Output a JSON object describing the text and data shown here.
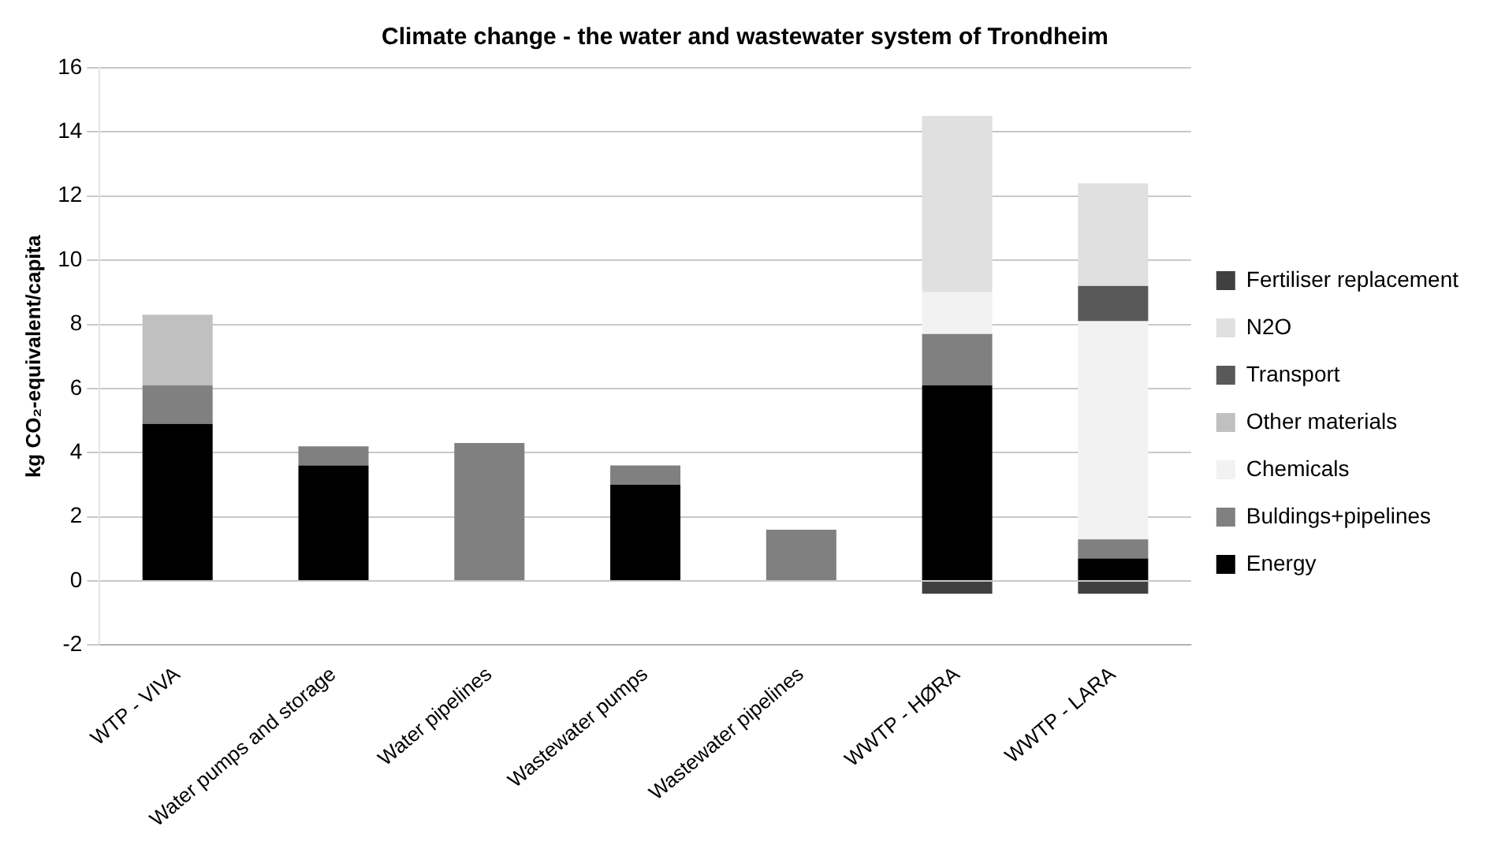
{
  "chart_data": {
    "type": "bar",
    "title": "Climate change - the water and wastewater system of Trondheim",
    "ylabel": "kg CO₂-equivalent/capita",
    "categories": [
      "WTP - VIVA",
      "Water pumps and storage",
      "Water pipelines",
      "Wastewater pumps",
      "Wastewater pipelines",
      "WWTP - HØRA",
      "WWTP - LARA"
    ],
    "stacked": true,
    "ylim": [
      -2,
      16
    ],
    "yticks": [
      -2,
      0,
      2,
      4,
      6,
      8,
      10,
      12,
      14,
      16
    ],
    "grid": "y",
    "legend": "right",
    "series": [
      {
        "name": "Energy",
        "color": "#000000",
        "values": [
          4.9,
          3.6,
          null,
          3.0,
          null,
          6.1,
          0.7
        ]
      },
      {
        "name": "Buldings+pipelines",
        "color": "#808080",
        "values": [
          1.2,
          0.6,
          4.3,
          0.6,
          1.6,
          1.6,
          0.6
        ]
      },
      {
        "name": "Chemicals",
        "color": "#f2f2f2",
        "values": [
          null,
          null,
          null,
          null,
          null,
          1.3,
          6.8
        ]
      },
      {
        "name": "Other materials",
        "color": "#c0c0c0",
        "values": [
          2.2,
          null,
          null,
          null,
          null,
          null,
          null
        ]
      },
      {
        "name": "Transport",
        "color": "#595959",
        "values": [
          null,
          null,
          null,
          null,
          null,
          null,
          1.1
        ]
      },
      {
        "name": "N2O",
        "color": "#e0e0e0",
        "values": [
          null,
          null,
          null,
          null,
          null,
          5.5,
          3.2
        ]
      },
      {
        "name": "Fertiliser replacement",
        "color": "#404040",
        "values": [
          null,
          null,
          null,
          null,
          null,
          -0.4,
          -0.4
        ]
      }
    ]
  }
}
